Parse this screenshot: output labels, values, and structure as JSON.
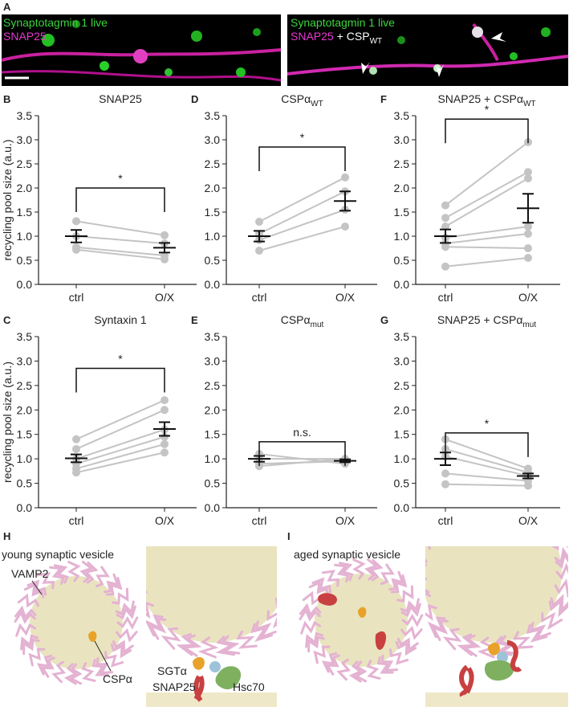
{
  "panel_a": {
    "label": "A",
    "left": {
      "line1": "Synaptotagmin 1 live",
      "line2": "SNAP25"
    },
    "right": {
      "line1": "Synaptotagmin 1 live",
      "line2_magenta": "SNAP25",
      "line2_white": "+ CSP",
      "line2_sub": "WT"
    }
  },
  "chart_data": [
    {
      "type": "paired",
      "panel": "B",
      "title": "SNAP25",
      "ylabel": "recycling pool size (a.u.)",
      "categories": [
        "ctrl",
        "O/X"
      ],
      "color": "#c4c4c4",
      "series": [
        {
          "values": [
            1.31,
            1.02
          ]
        },
        {
          "values": [
            1.0,
            0.85
          ]
        },
        {
          "values": [
            0.77,
            0.6
          ]
        },
        {
          "values": [
            0.72,
            0.52
          ]
        }
      ],
      "mean": [
        1.0,
        0.76
      ],
      "sem": [
        0.13,
        0.1
      ],
      "significance": {
        "label": "*",
        "y": 2.0
      },
      "ylim": [
        0,
        3.5
      ],
      "yticks": [
        {
          "value": 0,
          "label": "0.0"
        },
        0.5,
        {
          "value": 1,
          "label": "1.0"
        },
        1.5,
        {
          "value": 2,
          "label": "2.0"
        },
        2.5,
        {
          "value": 3,
          "label": "3.0"
        },
        3.5
      ]
    },
    {
      "type": "paired",
      "panel": "D",
      "title": "CSPα",
      "title_subscript": "WT",
      "categories": [
        "ctrl",
        "O/X"
      ],
      "color": "#c4c4c4",
      "series": [
        {
          "values": [
            1.3,
            2.22
          ]
        },
        {
          "values": [
            1.05,
            1.93
          ]
        },
        {
          "values": [
            0.92,
            1.55
          ]
        },
        {
          "values": [
            0.7,
            1.2
          ]
        }
      ],
      "mean": [
        1.0,
        1.73
      ],
      "sem": [
        0.11,
        0.2
      ],
      "significance": {
        "label": "*",
        "y": 2.85
      },
      "ylim": [
        0,
        3.5
      ],
      "yticks": [
        {
          "value": 0,
          "label": "0.0"
        },
        0.5,
        {
          "value": 1,
          "label": "1.0"
        },
        1.5,
        {
          "value": 2,
          "label": "2.0"
        },
        2.5,
        {
          "value": 3,
          "label": "3.0"
        },
        3.5
      ]
    },
    {
      "type": "paired",
      "panel": "F",
      "title": "SNAP25 + CSPα",
      "title_subscript": "WT",
      "categories": [
        "ctrl",
        "O/X"
      ],
      "color": "#c4c4c4",
      "series": [
        {
          "values": [
            1.64,
            2.95
          ]
        },
        {
          "values": [
            1.38,
            2.33
          ]
        },
        {
          "values": [
            1.2,
            2.2
          ]
        },
        {
          "values": [
            0.97,
            1.2
          ]
        },
        {
          "values": [
            0.85,
            1.05
          ]
        },
        {
          "values": [
            0.78,
            0.75
          ]
        },
        {
          "values": [
            0.37,
            0.55
          ]
        }
      ],
      "mean": [
        1.0,
        1.58
      ],
      "sem": [
        0.14,
        0.3
      ],
      "significance": {
        "label": "*",
        "y": 3.43
      },
      "ylim": [
        0,
        3.5
      ],
      "yticks": [
        {
          "value": 0,
          "label": "0.0"
        },
        0.5,
        {
          "value": 1,
          "label": "1.0"
        },
        1.5,
        {
          "value": 2,
          "label": "2.0"
        },
        2.5,
        {
          "value": 3,
          "label": "3.0"
        },
        3.5
      ]
    },
    {
      "type": "paired",
      "panel": "C",
      "title": "Syntaxin 1",
      "ylabel": "recycling pool size (a.u.)",
      "categories": [
        "ctrl",
        "O/X"
      ],
      "color": "#c4c4c4",
      "series": [
        {
          "values": [
            1.4,
            2.2
          ]
        },
        {
          "values": [
            1.2,
            2.0
          ]
        },
        {
          "values": [
            1.0,
            1.6
          ]
        },
        {
          "values": [
            0.9,
            1.45
          ]
        },
        {
          "values": [
            0.8,
            1.3
          ]
        },
        {
          "values": [
            0.72,
            1.13
          ]
        }
      ],
      "mean": [
        1.01,
        1.61
      ],
      "sem": [
        0.08,
        0.14
      ],
      "significance": {
        "label": "*",
        "y": 2.85
      },
      "ylim": [
        0,
        3.5
      ],
      "yticks": [
        {
          "value": 0,
          "label": "0.0"
        },
        0.5,
        {
          "value": 1,
          "label": "1.0"
        },
        1.5,
        {
          "value": 2,
          "label": "2.0"
        },
        2.5,
        {
          "value": 3,
          "label": "3.0"
        },
        3.5
      ]
    },
    {
      "type": "paired",
      "panel": "E",
      "title": "CSPα",
      "title_subscript": "mut",
      "categories": [
        "ctrl",
        "O/X"
      ],
      "color": "#c4c4c4",
      "series": [
        {
          "values": [
            1.1,
            0.9
          ]
        },
        {
          "values": [
            1.0,
            1.0
          ]
        },
        {
          "values": [
            0.9,
            0.95
          ]
        },
        {
          "values": [
            0.85,
            1.0
          ]
        }
      ],
      "mean": [
        1.0,
        0.96
      ],
      "sem": [
        0.06,
        0.03
      ],
      "significance": {
        "label": "n.s.",
        "y": 1.35
      },
      "ylim": [
        0,
        3.5
      ],
      "yticks": [
        {
          "value": 0,
          "label": "0.0"
        },
        0.5,
        {
          "value": 1,
          "label": "1.0"
        },
        1.5,
        {
          "value": 2,
          "label": "2.0"
        },
        2.5,
        {
          "value": 3,
          "label": "3.0"
        },
        3.5
      ]
    },
    {
      "type": "paired",
      "panel": "G",
      "title": "SNAP25 + CSPα",
      "title_subscript": "mut",
      "categories": [
        "ctrl",
        "O/X"
      ],
      "color": "#c4c4c4",
      "series": [
        {
          "values": [
            1.4,
            0.8
          ]
        },
        {
          "values": [
            1.2,
            0.72
          ]
        },
        {
          "values": [
            1.05,
            0.65
          ]
        },
        {
          "values": [
            0.7,
            0.55
          ]
        },
        {
          "values": [
            0.48,
            0.45
          ]
        }
      ],
      "mean": [
        1.0,
        0.65
      ],
      "sem": [
        0.13,
        0.05
      ],
      "significance": {
        "label": "*",
        "y": 1.53
      },
      "ylim": [
        0,
        3.5
      ],
      "yticks": [
        {
          "value": 0,
          "label": "0.0"
        },
        0.5,
        {
          "value": 1,
          "label": "1.0"
        },
        1.5,
        {
          "value": 2,
          "label": "2.0"
        },
        2.5,
        {
          "value": 3,
          "label": "3.0"
        },
        3.5
      ]
    }
  ],
  "panel_h": {
    "label": "H",
    "title": "young synaptic vesicle",
    "vamp2": "VAMP2",
    "cspa": "CSPα",
    "sgta": "SGTα",
    "snap25": "SNAP25",
    "hsc70": "Hsc70"
  },
  "panel_i": {
    "label": "I",
    "title": "aged synaptic vesicle"
  }
}
